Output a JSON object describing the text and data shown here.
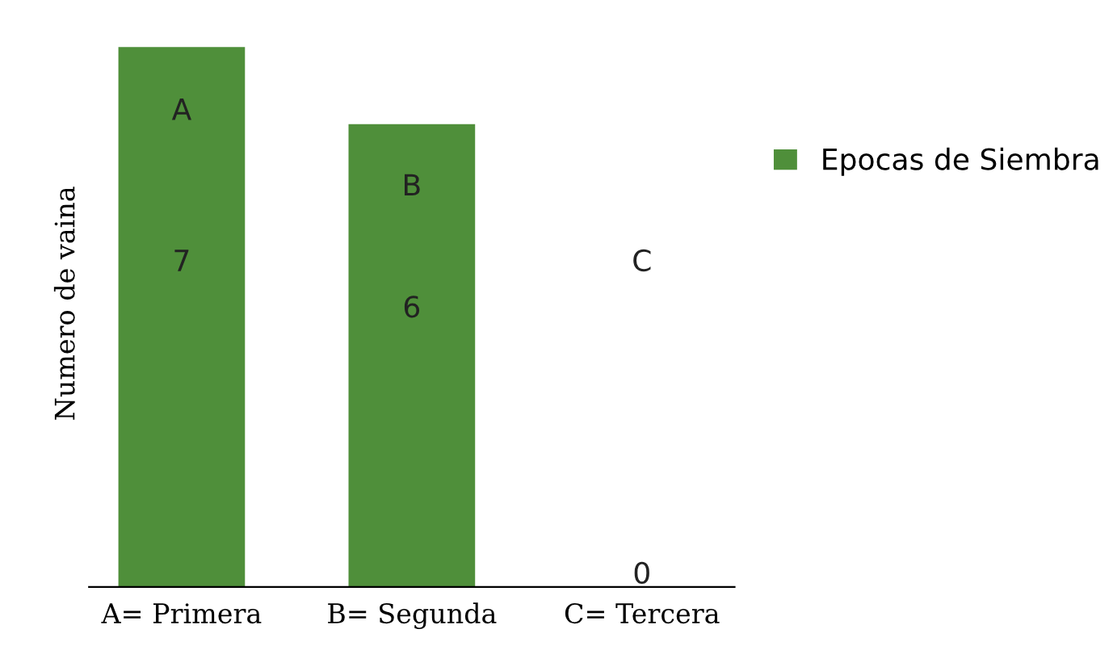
{
  "chart_data": {
    "type": "bar",
    "ylabel": "Numero de vaina",
    "categories": [
      "A= Primera",
      "B= Segunda",
      "C= Tercera"
    ],
    "series": [
      {
        "name": "Epocas de Siembra",
        "color": "#4f8f3a",
        "values": [
          7,
          6,
          0
        ]
      }
    ],
    "data_labels": true,
    "tick_labels": "x",
    "legend": "right",
    "grid": false,
    "annotations": [
      "A",
      "B",
      "C"
    ]
  }
}
